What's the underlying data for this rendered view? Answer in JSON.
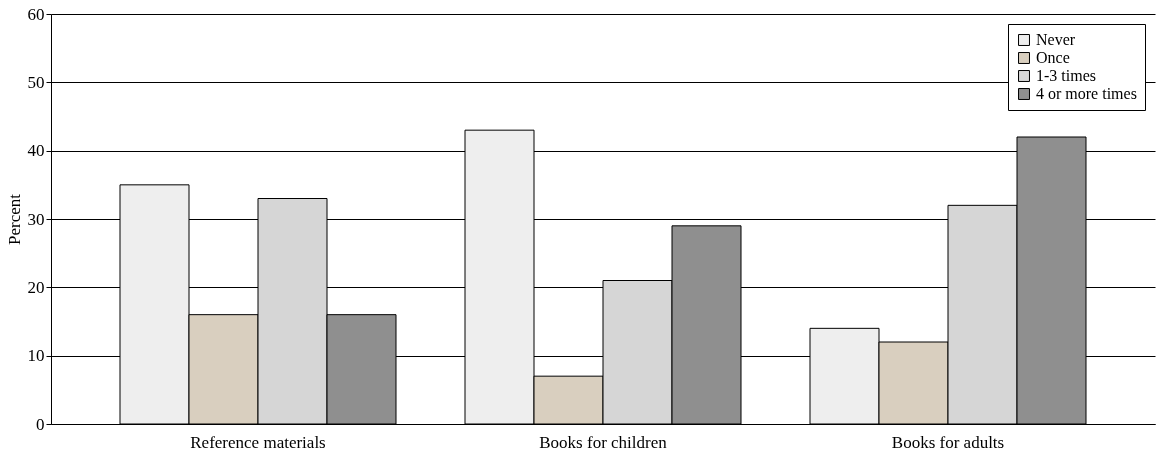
{
  "chart_data": {
    "type": "bar",
    "ylabel": "Percent",
    "categories": [
      "Reference materials",
      "Books for children",
      "Books for adults"
    ],
    "series": [
      {
        "name": "Never",
        "color": "#eeeeee",
        "values": [
          35,
          43,
          14
        ]
      },
      {
        "name": "Once",
        "color": "#d9cfbf",
        "values": [
          16,
          7,
          12
        ]
      },
      {
        "name": "1-3 times",
        "color": "#d6d6d6",
        "values": [
          33,
          21,
          32
        ]
      },
      {
        "name": "4 or more times",
        "color": "#8f8f8f",
        "values": [
          16,
          29,
          42
        ]
      }
    ],
    "ylim": [
      0,
      60
    ],
    "yticks": [
      0,
      10,
      20,
      30,
      40,
      50,
      60
    ],
    "grid": "y",
    "legend": "top right"
  }
}
